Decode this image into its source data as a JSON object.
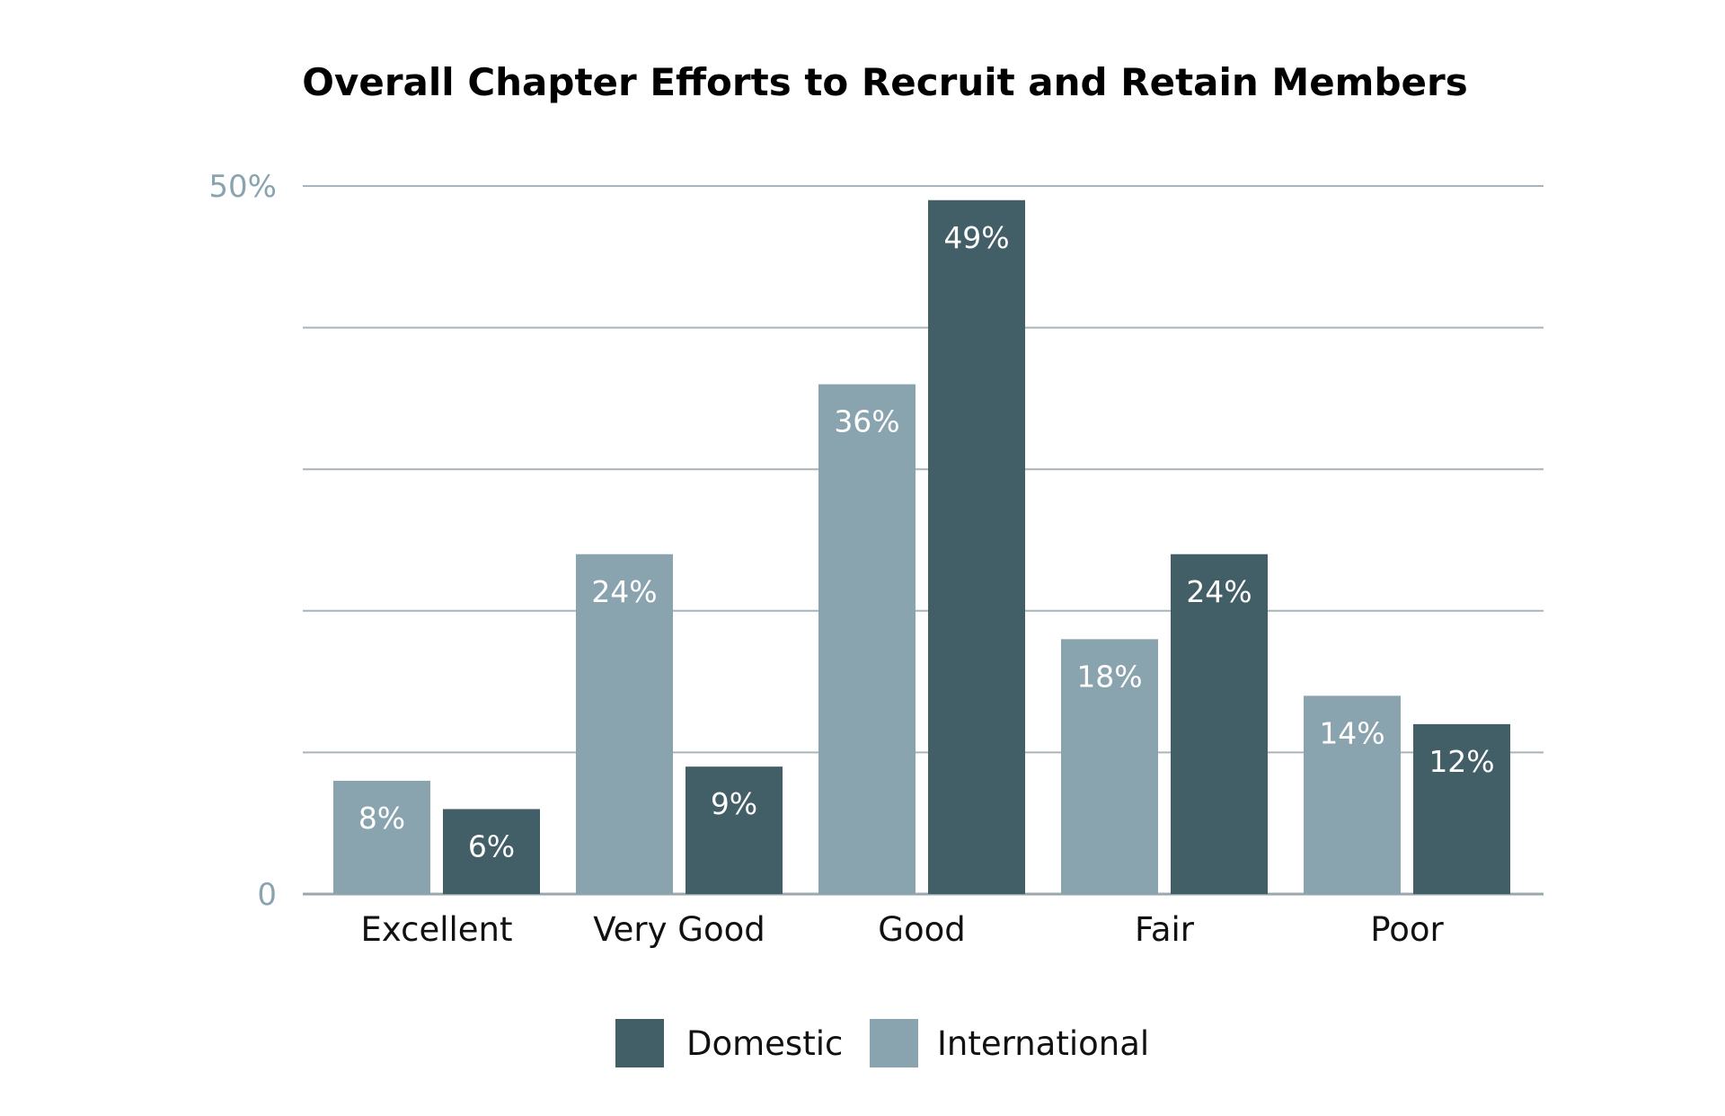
{
  "chart_data": {
    "type": "bar",
    "title": "Overall Chapter Efforts to Recruit and Retain Members",
    "categories": [
      "Excellent",
      "Very Good",
      "Good",
      "Fair",
      "Poor"
    ],
    "series": [
      {
        "name": "International",
        "color": "#8aa4af",
        "values": [
          8,
          24,
          36,
          18,
          14
        ],
        "labels": [
          "8%",
          "24%",
          "36%",
          "18%",
          "14%"
        ]
      },
      {
        "name": "Domestic",
        "color": "#425e66",
        "values": [
          6,
          9,
          49,
          24,
          12
        ],
        "labels": [
          "6%",
          "9%",
          "49%",
          "24%",
          "12%"
        ]
      }
    ],
    "ylim": [
      0,
      50
    ],
    "yticks": [
      0,
      10,
      20,
      30,
      40,
      50
    ],
    "ytick_labels": [
      "0",
      "",
      "",
      "",
      "",
      "50%"
    ],
    "grid": true,
    "legend": {
      "placement": "bottom-center",
      "entries": [
        {
          "name": "Domestic",
          "color": "#425e66"
        },
        {
          "name": "International",
          "color": "#8aa4af"
        }
      ]
    },
    "xlabel": "",
    "ylabel": ""
  }
}
